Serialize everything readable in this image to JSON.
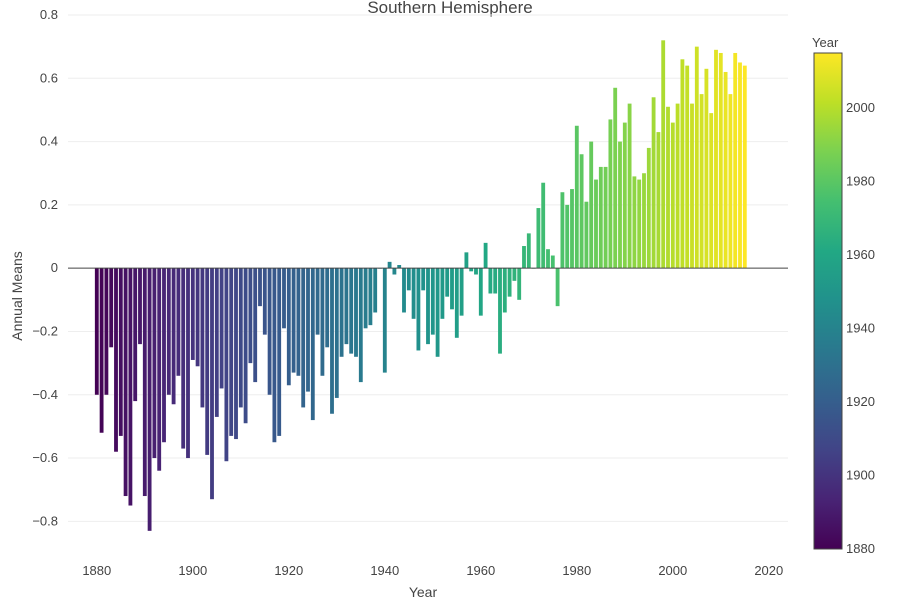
{
  "chart_data": {
    "type": "bar",
    "title": "Southern Hemisphere",
    "xlabel": "Year",
    "ylabel": "Annual Means",
    "xlim": [
      1874,
      2024
    ],
    "ylim": [
      -0.9,
      0.8
    ],
    "grid": true,
    "x_ticks": [
      1880,
      1900,
      1920,
      1940,
      1960,
      1980,
      2000,
      2020
    ],
    "y_ticks": [
      0.8,
      0.6,
      0.4,
      0.2,
      0,
      -0.2,
      -0.4,
      -0.6,
      -0.8
    ],
    "y_tick_labels": [
      "0.8",
      "0.6",
      "0.4",
      "0.2",
      "0",
      "−0.2",
      "−0.4",
      "−0.6",
      "−0.8"
    ],
    "colorbar": {
      "title": "Year",
      "range": [
        1880,
        2015
      ],
      "ticks": [
        1880,
        1900,
        1920,
        1940,
        1960,
        1980,
        2000
      ],
      "colorscale": "Viridis",
      "placement": "right"
    },
    "x": [
      1880,
      1881,
      1882,
      1883,
      1884,
      1885,
      1886,
      1887,
      1888,
      1889,
      1890,
      1891,
      1892,
      1893,
      1894,
      1895,
      1896,
      1897,
      1898,
      1899,
      1900,
      1901,
      1902,
      1903,
      1904,
      1905,
      1906,
      1907,
      1908,
      1909,
      1910,
      1911,
      1912,
      1913,
      1914,
      1915,
      1916,
      1917,
      1918,
      1919,
      1920,
      1921,
      1922,
      1923,
      1924,
      1925,
      1926,
      1927,
      1928,
      1929,
      1930,
      1931,
      1932,
      1933,
      1934,
      1935,
      1936,
      1937,
      1938,
      1939,
      1940,
      1941,
      1942,
      1943,
      1944,
      1945,
      1946,
      1947,
      1948,
      1949,
      1950,
      1951,
      1952,
      1953,
      1954,
      1955,
      1956,
      1957,
      1958,
      1959,
      1960,
      1961,
      1962,
      1963,
      1964,
      1965,
      1966,
      1967,
      1968,
      1969,
      1970,
      1971,
      1972,
      1973,
      1974,
      1975,
      1976,
      1977,
      1978,
      1979,
      1980,
      1981,
      1982,
      1983,
      1984,
      1985,
      1986,
      1987,
      1988,
      1989,
      1990,
      1991,
      1992,
      1993,
      1994,
      1995,
      1996,
      1997,
      1998,
      1999,
      2000,
      2001,
      2002,
      2003,
      2004,
      2005,
      2006,
      2007,
      2008,
      2009,
      2010,
      2011,
      2012,
      2013,
      2014,
      2015
    ],
    "values": [
      -0.4,
      -0.52,
      -0.4,
      -0.25,
      -0.58,
      -0.53,
      -0.72,
      -0.75,
      -0.42,
      -0.24,
      -0.72,
      -0.83,
      -0.6,
      -0.64,
      -0.55,
      -0.4,
      -0.43,
      -0.34,
      -0.57,
      -0.6,
      -0.29,
      -0.31,
      -0.44,
      -0.59,
      -0.73,
      -0.47,
      -0.38,
      -0.61,
      -0.53,
      -0.54,
      -0.44,
      -0.49,
      -0.3,
      -0.36,
      -0.12,
      -0.21,
      -0.4,
      -0.55,
      -0.53,
      -0.19,
      -0.37,
      -0.33,
      -0.34,
      -0.44,
      -0.39,
      -0.48,
      -0.21,
      -0.34,
      -0.25,
      -0.46,
      -0.41,
      -0.28,
      -0.24,
      -0.27,
      -0.28,
      -0.36,
      -0.19,
      -0.18,
      -0.14,
      0.0,
      -0.33,
      0.02,
      -0.02,
      0.01,
      -0.14,
      -0.07,
      -0.16,
      -0.26,
      -0.07,
      -0.24,
      -0.21,
      -0.28,
      -0.16,
      -0.09,
      -0.13,
      -0.22,
      -0.15,
      0.05,
      -0.01,
      -0.02,
      -0.15,
      0.08,
      -0.08,
      -0.08,
      -0.27,
      -0.14,
      -0.09,
      -0.04,
      -0.1,
      0.07,
      0.11,
      0.0,
      0.19,
      0.27,
      0.06,
      0.04,
      -0.12,
      0.24,
      0.2,
      0.25,
      0.45,
      0.36,
      0.21,
      0.4,
      0.28,
      0.32,
      0.32,
      0.47,
      0.57,
      0.4,
      0.46,
      0.52,
      0.29,
      0.28,
      0.3,
      0.38,
      0.54,
      0.43,
      0.72,
      0.51,
      0.46,
      0.52,
      0.66,
      0.64,
      0.52,
      0.7,
      0.55,
      0.63,
      0.49,
      0.69,
      0.68,
      0.62,
      0.55,
      0.68,
      0.65,
      0.64
    ]
  }
}
